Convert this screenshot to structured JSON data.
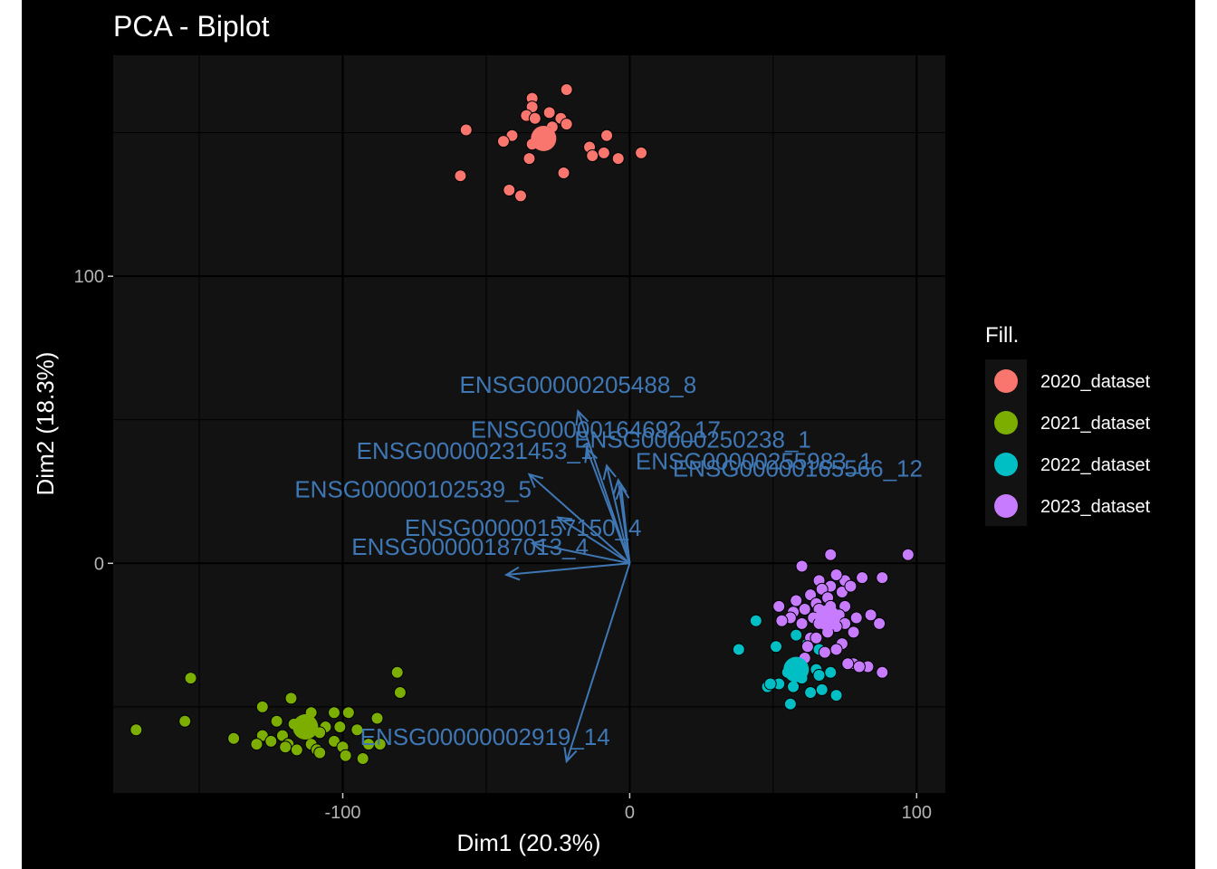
{
  "chart_data": {
    "type": "scatter",
    "title": "PCA - Biplot",
    "xlabel": "Dim1 (20.3%)",
    "ylabel": "Dim2 (18.3%)",
    "xlim": [
      -180,
      110
    ],
    "ylim": [
      -80,
      177
    ],
    "xticks": [
      -100,
      0,
      100
    ],
    "yticks": [
      0,
      100
    ],
    "xtick_labels": [
      "-100",
      "0",
      "100"
    ],
    "ytick_labels": [
      "0",
      "100"
    ],
    "grid": true,
    "legend_position": "right",
    "legend_title": "Fill.",
    "series": [
      {
        "name": "2020_dataset",
        "color": "#f8766d",
        "centroid": [
          -30,
          148
        ],
        "points": [
          [
            -34,
            162
          ],
          [
            -34,
            159
          ],
          [
            -22,
            165
          ],
          [
            -28,
            157
          ],
          [
            -36,
            156
          ],
          [
            -24,
            155
          ],
          [
            -27,
            152
          ],
          [
            -33,
            155
          ],
          [
            -29,
            150
          ],
          [
            -22,
            153
          ],
          [
            -41,
            149
          ],
          [
            -44,
            147
          ],
          [
            -34,
            146
          ],
          [
            -57,
            151
          ],
          [
            -35,
            141
          ],
          [
            -14,
            145
          ],
          [
            -9,
            143
          ],
          [
            -13,
            142
          ],
          [
            -23,
            136
          ],
          [
            -59,
            135
          ],
          [
            -8,
            149
          ],
          [
            -4,
            141
          ],
          [
            4,
            143
          ],
          [
            -42,
            130
          ],
          [
            -38,
            128
          ]
        ]
      },
      {
        "name": "2021_dataset",
        "color": "#7cae00",
        "centroid": [
          -113,
          -57
        ],
        "points": [
          [
            -128,
            -50
          ],
          [
            -118,
            -47
          ],
          [
            -111,
            -52
          ],
          [
            -103,
            -52
          ],
          [
            -98,
            -52
          ],
          [
            -123,
            -55
          ],
          [
            -117,
            -56
          ],
          [
            -106,
            -57
          ],
          [
            -101,
            -57
          ],
          [
            -88,
            -54
          ],
          [
            -128,
            -60
          ],
          [
            -121,
            -60
          ],
          [
            -113,
            -59
          ],
          [
            -108,
            -59
          ],
          [
            -95,
            -58
          ],
          [
            -125,
            -62
          ],
          [
            -119,
            -63
          ],
          [
            -111,
            -63
          ],
          [
            -103,
            -62
          ],
          [
            -138,
            -61
          ],
          [
            -116,
            -65
          ],
          [
            -109,
            -65
          ],
          [
            -100,
            -64
          ],
          [
            -91,
            -63
          ],
          [
            -130,
            -63
          ],
          [
            -99,
            -67
          ],
          [
            -87,
            -63
          ],
          [
            -108,
            -66
          ],
          [
            -93,
            -68
          ],
          [
            -120,
            -64
          ],
          [
            -172,
            -58
          ],
          [
            -155,
            -55
          ],
          [
            -153,
            -40
          ],
          [
            -81,
            -38
          ],
          [
            -80,
            -45
          ]
        ]
      },
      {
        "name": "2022_dataset",
        "color": "#00bfc4",
        "centroid": [
          58,
          -37
        ],
        "points": [
          [
            44,
            -20
          ],
          [
            38,
            -30
          ],
          [
            51,
            -29
          ],
          [
            58,
            -25
          ],
          [
            62,
            -28
          ],
          [
            66,
            -30
          ],
          [
            55,
            -38
          ],
          [
            65,
            -37
          ],
          [
            60,
            -40
          ],
          [
            52,
            -42
          ],
          [
            48,
            -43
          ],
          [
            57,
            -43
          ],
          [
            67,
            -44
          ],
          [
            66,
            -39
          ],
          [
            63,
            -45
          ],
          [
            72,
            -46
          ],
          [
            56,
            -49
          ],
          [
            70,
            -38
          ],
          [
            49,
            -42
          ]
        ]
      },
      {
        "name": "2023_dataset",
        "color": "#c77cff",
        "centroid": [
          69,
          -19
        ],
        "points": [
          [
            97,
            3
          ],
          [
            70,
            3
          ],
          [
            60,
            -1
          ],
          [
            88,
            -5
          ],
          [
            81,
            -5
          ],
          [
            75,
            -6
          ],
          [
            72,
            -4
          ],
          [
            66,
            -6
          ],
          [
            70,
            -8
          ],
          [
            67,
            -9
          ],
          [
            74,
            -10
          ],
          [
            77,
            -8
          ],
          [
            63,
            -11
          ],
          [
            69,
            -12
          ],
          [
            58,
            -13
          ],
          [
            65,
            -14
          ],
          [
            52,
            -15
          ],
          [
            70,
            -15
          ],
          [
            61,
            -16
          ],
          [
            57,
            -17
          ],
          [
            75,
            -15
          ],
          [
            66,
            -16
          ],
          [
            73,
            -18
          ],
          [
            64,
            -19
          ],
          [
            84,
            -18
          ],
          [
            79,
            -19
          ],
          [
            56,
            -19
          ],
          [
            53,
            -20
          ],
          [
            60,
            -21
          ],
          [
            66,
            -21
          ],
          [
            75,
            -21
          ],
          [
            87,
            -21
          ],
          [
            72,
            -22
          ],
          [
            78,
            -24
          ],
          [
            69,
            -24
          ],
          [
            63,
            -26
          ],
          [
            65,
            -26
          ],
          [
            74,
            -28
          ],
          [
            62,
            -29
          ],
          [
            68,
            -31
          ],
          [
            78,
            -35
          ],
          [
            83,
            -36
          ],
          [
            80,
            -36
          ],
          [
            76,
            -35
          ],
          [
            88,
            -38
          ],
          [
            61,
            -33
          ],
          [
            72,
            -30
          ]
        ]
      }
    ],
    "variables": [
      {
        "name": "ENSG00000205488_8",
        "end": [
          -18,
          53
        ]
      },
      {
        "name": "ENSG00000250238_1",
        "end": [
          -8,
          34
        ]
      },
      {
        "name": "ENSG00000231453_1",
        "end": [
          -35,
          31
        ]
      },
      {
        "name": "ENSG00000164692_17",
        "end": [
          -15,
          40
        ]
      },
      {
        "name": "ENSG00000255983_1",
        "end": [
          -4,
          29
        ]
      },
      {
        "name": "ENSG00000102539_5",
        "end": [
          -25,
          16
        ]
      },
      {
        "name": "ENSG00000165566_12",
        "end": [
          -3,
          27
        ]
      },
      {
        "name": "ENSG00000157150_4",
        "end": [
          -34,
          7
        ]
      },
      {
        "name": "ENSG00000187013_4",
        "end": [
          -43,
          -4
        ]
      },
      {
        "name": "ENSG00000002919_14",
        "end": [
          -22,
          -69
        ]
      }
    ]
  }
}
